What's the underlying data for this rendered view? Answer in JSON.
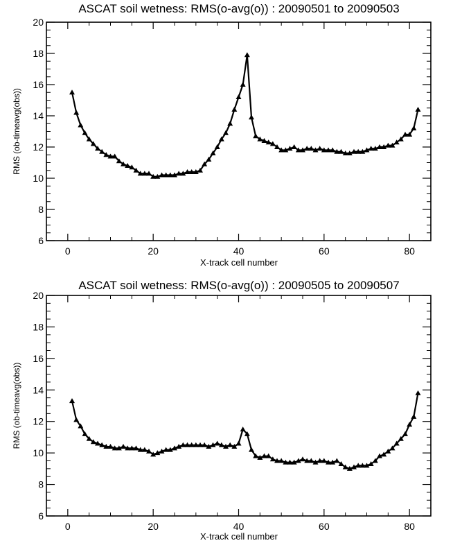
{
  "chart_data": [
    {
      "type": "line",
      "title": "ASCAT soil wetness: RMS(o-avg(o)) : 20090501 to 20090503",
      "xlabel": "X-track cell number",
      "ylabel": "RMS (ob-timeavg(obs))",
      "xlim": [
        -5,
        85
      ],
      "ylim": [
        6,
        20
      ],
      "xticks": [
        "0",
        "20",
        "40",
        "60",
        "80"
      ],
      "yticks": [
        "6",
        "8",
        "10",
        "12",
        "14",
        "16",
        "18",
        "20"
      ],
      "grid": false,
      "marker": "triangle",
      "x": [
        1,
        2,
        3,
        4,
        5,
        6,
        7,
        8,
        9,
        10,
        11,
        12,
        13,
        14,
        15,
        16,
        17,
        18,
        19,
        20,
        21,
        22,
        23,
        24,
        25,
        26,
        27,
        28,
        29,
        30,
        31,
        32,
        33,
        34,
        35,
        36,
        37,
        38,
        39,
        40,
        41,
        42,
        43,
        44,
        45,
        46,
        47,
        48,
        49,
        50,
        51,
        52,
        53,
        54,
        55,
        56,
        57,
        58,
        59,
        60,
        61,
        62,
        63,
        64,
        65,
        66,
        67,
        68,
        69,
        70,
        71,
        72,
        73,
        74,
        75,
        76,
        77,
        78,
        79,
        80,
        81,
        82
      ],
      "y": [
        15.5,
        14.2,
        13.4,
        12.9,
        12.5,
        12.2,
        11.9,
        11.7,
        11.5,
        11.4,
        11.4,
        11.1,
        10.9,
        10.8,
        10.7,
        10.5,
        10.3,
        10.3,
        10.3,
        10.1,
        10.1,
        10.2,
        10.2,
        10.2,
        10.2,
        10.3,
        10.3,
        10.4,
        10.4,
        10.4,
        10.5,
        10.9,
        11.2,
        11.6,
        12.0,
        12.5,
        12.9,
        13.5,
        14.4,
        15.2,
        16.0,
        17.9,
        13.9,
        12.7,
        12.5,
        12.4,
        12.3,
        12.2,
        12.0,
        11.8,
        11.8,
        11.9,
        12.0,
        11.8,
        11.8,
        11.9,
        11.9,
        11.8,
        11.9,
        11.8,
        11.8,
        11.8,
        11.7,
        11.7,
        11.6,
        11.6,
        11.7,
        11.7,
        11.7,
        11.8,
        11.9,
        11.9,
        12.0,
        12.0,
        12.1,
        12.1,
        12.3,
        12.5,
        12.8,
        12.8,
        13.2,
        14.4
      ]
    },
    {
      "type": "line",
      "title": "ASCAT soil wetness: RMS(o-avg(o)) : 20090505 to 20090507",
      "xlabel": "X-track cell number",
      "ylabel": "RMS (ob-timeavg(obs))",
      "xlim": [
        -5,
        85
      ],
      "ylim": [
        6,
        20
      ],
      "xticks": [
        "0",
        "20",
        "40",
        "60",
        "80"
      ],
      "yticks": [
        "6",
        "8",
        "10",
        "12",
        "14",
        "16",
        "18",
        "20"
      ],
      "grid": false,
      "marker": "triangle",
      "x": [
        1,
        2,
        3,
        4,
        5,
        6,
        7,
        8,
        9,
        10,
        11,
        12,
        13,
        14,
        15,
        16,
        17,
        18,
        19,
        20,
        21,
        22,
        23,
        24,
        25,
        26,
        27,
        28,
        29,
        30,
        31,
        32,
        33,
        34,
        35,
        36,
        37,
        38,
        39,
        40,
        41,
        42,
        43,
        44,
        45,
        46,
        47,
        48,
        49,
        50,
        51,
        52,
        53,
        54,
        55,
        56,
        57,
        58,
        59,
        60,
        61,
        62,
        63,
        64,
        65,
        66,
        67,
        68,
        69,
        70,
        71,
        72,
        73,
        74,
        75,
        76,
        77,
        78,
        79,
        80,
        81,
        82
      ],
      "y": [
        13.3,
        12.1,
        11.7,
        11.2,
        10.9,
        10.7,
        10.6,
        10.5,
        10.4,
        10.4,
        10.3,
        10.3,
        10.4,
        10.3,
        10.3,
        10.3,
        10.2,
        10.2,
        10.1,
        9.9,
        10.0,
        10.1,
        10.2,
        10.2,
        10.3,
        10.4,
        10.5,
        10.5,
        10.5,
        10.5,
        10.5,
        10.5,
        10.4,
        10.5,
        10.6,
        10.5,
        10.4,
        10.5,
        10.4,
        10.6,
        11.5,
        11.2,
        10.2,
        9.8,
        9.7,
        9.8,
        9.8,
        9.6,
        9.5,
        9.5,
        9.4,
        9.4,
        9.4,
        9.5,
        9.6,
        9.5,
        9.5,
        9.4,
        9.5,
        9.5,
        9.4,
        9.4,
        9.5,
        9.3,
        9.1,
        9.0,
        9.1,
        9.2,
        9.2,
        9.2,
        9.3,
        9.5,
        9.8,
        9.9,
        10.1,
        10.3,
        10.6,
        10.9,
        11.2,
        11.8,
        12.3,
        13.8
      ]
    }
  ]
}
